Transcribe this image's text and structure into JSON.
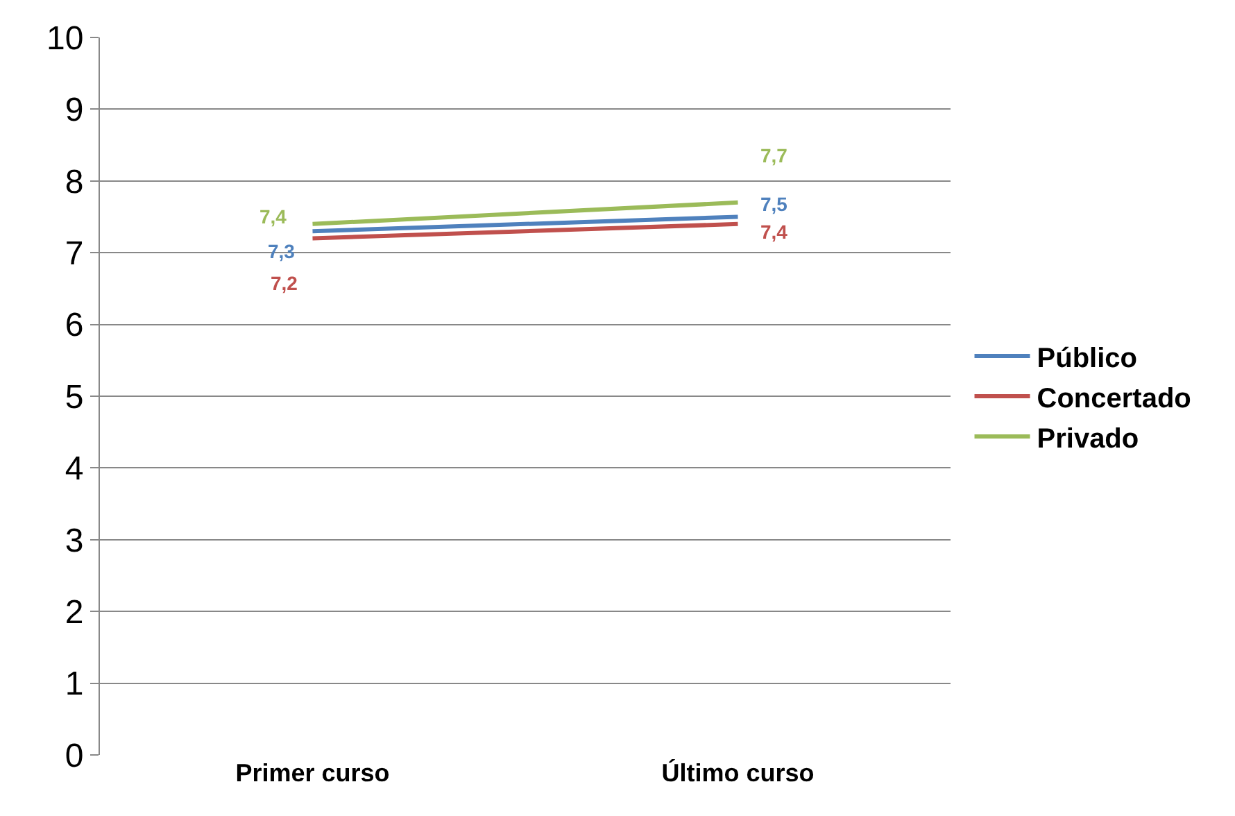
{
  "chart_data": {
    "type": "line",
    "categories": [
      "Primer curso",
      "Último curso"
    ],
    "series": [
      {
        "name": "Público",
        "color": "#4f81bd",
        "values": [
          7.3,
          7.5
        ],
        "value_labels": [
          "7,3",
          "7,5"
        ]
      },
      {
        "name": "Concertado",
        "color": "#c0504d",
        "values": [
          7.2,
          7.4
        ],
        "value_labels": [
          "7,2",
          "7,4"
        ]
      },
      {
        "name": "Privado",
        "color": "#9bbb59",
        "values": [
          7.4,
          7.7
        ],
        "value_labels": [
          "7,4",
          "7,7"
        ]
      }
    ],
    "ylim": [
      0,
      10
    ],
    "yticks": [
      0,
      1,
      2,
      3,
      4,
      5,
      6,
      7,
      8,
      9,
      10
    ],
    "grid": "y",
    "legend": "right",
    "marker": "none",
    "line_style": "solid"
  }
}
